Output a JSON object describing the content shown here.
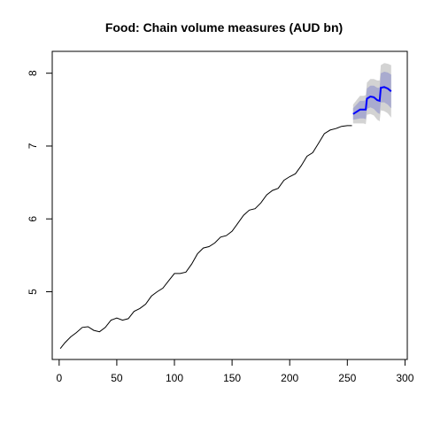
{
  "chart_data": {
    "type": "line",
    "title": "Food: Chain volume measures (AUD bn)",
    "xlabel": "",
    "ylabel": "",
    "xlim": [
      -6,
      302
    ],
    "ylim": [
      4.07,
      8.3
    ],
    "xticks": [
      0,
      50,
      100,
      150,
      200,
      250,
      300
    ],
    "yticks": [
      5,
      6,
      7,
      8
    ],
    "grid": false,
    "legend": "none",
    "colors": {
      "history": "#000000",
      "forecast": "#0000ff",
      "band80": "#a9abcf",
      "band95": "#d3d3d3"
    },
    "series": [
      {
        "role": "history",
        "x": [
          1,
          5,
          10,
          15,
          20,
          25,
          30,
          35,
          40,
          45,
          50,
          55,
          60,
          65,
          70,
          75,
          80,
          85,
          90,
          95,
          100,
          105,
          110,
          115,
          120,
          125,
          130,
          135,
          140,
          145,
          150,
          155,
          160,
          165,
          170,
          175,
          180,
          185,
          190,
          195,
          200,
          205,
          210,
          215,
          220,
          225,
          230,
          235,
          240,
          245,
          250,
          254
        ],
        "y": [
          4.22,
          4.3,
          4.38,
          4.44,
          4.51,
          4.52,
          4.47,
          4.45,
          4.51,
          4.61,
          4.64,
          4.61,
          4.63,
          4.73,
          4.77,
          4.83,
          4.94,
          5.0,
          5.05,
          5.15,
          5.25,
          5.25,
          5.27,
          5.38,
          5.52,
          5.6,
          5.62,
          5.67,
          5.75,
          5.77,
          5.83,
          5.94,
          6.05,
          6.12,
          6.14,
          6.22,
          6.33,
          6.39,
          6.42,
          6.53,
          6.58,
          6.62,
          6.73,
          6.86,
          6.91,
          7.04,
          7.17,
          7.22,
          7.24,
          7.27,
          7.28,
          7.28
        ]
      },
      {
        "role": "forecast",
        "x": [
          255,
          258,
          261,
          264,
          266,
          267,
          270,
          273,
          276,
          278,
          279,
          282,
          285,
          288
        ],
        "y": [
          7.44,
          7.47,
          7.5,
          7.5,
          7.5,
          7.65,
          7.68,
          7.67,
          7.63,
          7.62,
          7.8,
          7.81,
          7.79,
          7.75
        ],
        "lo80": [
          7.36,
          7.37,
          7.38,
          7.38,
          7.37,
          7.51,
          7.53,
          7.51,
          7.46,
          7.44,
          7.6,
          7.6,
          7.57,
          7.52
        ],
        "hi80": [
          7.52,
          7.57,
          7.62,
          7.62,
          7.63,
          7.79,
          7.83,
          7.83,
          7.8,
          7.8,
          8.0,
          8.02,
          8.01,
          7.98
        ],
        "lo95": [
          7.31,
          7.31,
          7.31,
          7.31,
          7.3,
          7.43,
          7.44,
          7.42,
          7.36,
          7.34,
          7.49,
          7.48,
          7.45,
          7.39
        ],
        "hi95": [
          7.57,
          7.63,
          7.69,
          7.69,
          7.7,
          7.87,
          7.92,
          7.92,
          7.9,
          7.9,
          8.11,
          8.14,
          8.13,
          8.11
        ]
      }
    ]
  }
}
